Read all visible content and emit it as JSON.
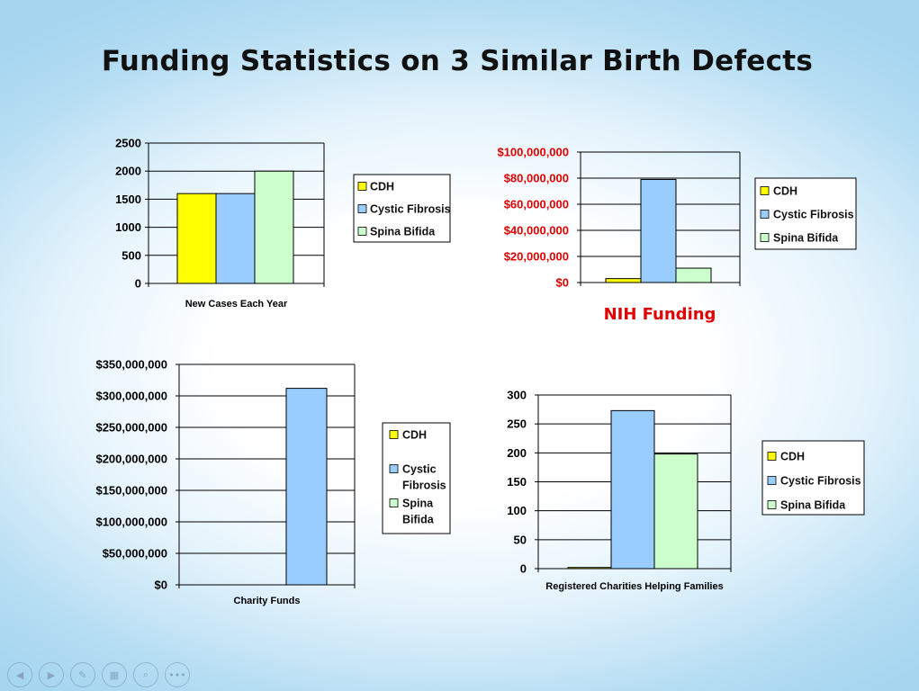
{
  "slide": {
    "title": "Funding Statistics on 3 Similar Birth Defects"
  },
  "colors": {
    "CDH": "#ffff00",
    "Cystic Fibrosis": "#99ccff",
    "Spina Bifida": "#ccffcc",
    "red_text": "#e00000"
  },
  "chart_data": [
    {
      "id": "new-cases",
      "type": "bar",
      "title": "",
      "categories": [
        "New Cases Each Year"
      ],
      "series": [
        {
          "name": "CDH",
          "values": [
            1600
          ]
        },
        {
          "name": "Cystic Fibrosis",
          "values": [
            1600
          ]
        },
        {
          "name": "Spina Bifida",
          "values": [
            2000
          ]
        }
      ],
      "yticks": [
        "0",
        "500",
        "1000",
        "1500",
        "2000",
        "2500"
      ],
      "ylim": [
        0,
        2500
      ],
      "legend": [
        "CDH",
        "Cystic Fibrosis",
        "Spina Bifida"
      ],
      "grid": true
    },
    {
      "id": "nih-funding",
      "type": "bar",
      "title": "NIH Funding",
      "categories": [
        ""
      ],
      "series": [
        {
          "name": "CDH",
          "values": [
            3000000
          ]
        },
        {
          "name": "Cystic Fibrosis",
          "values": [
            79000000
          ]
        },
        {
          "name": "Spina Bifida",
          "values": [
            11000000
          ]
        }
      ],
      "yticks": [
        "$0",
        "$20,000,000",
        "$40,000,000",
        "$60,000,000",
        "$80,000,000",
        "$100,000,000"
      ],
      "ylim": [
        0,
        100000000
      ],
      "legend": [
        "CDH",
        "Cystic Fibrosis",
        "Spina Bifida"
      ],
      "grid": true
    },
    {
      "id": "charity-funds",
      "type": "bar",
      "title": "",
      "categories": [
        "Charity Funds"
      ],
      "series": [
        {
          "name": "CDH",
          "values": [
            0
          ]
        },
        {
          "name": "Cystic Fibrosis",
          "values": [
            312000000
          ]
        },
        {
          "name": "Spina Bifida",
          "values": [
            0
          ]
        }
      ],
      "yticks": [
        "$0",
        "$50,000,000",
        "$100,000,000",
        "$150,000,000",
        "$200,000,000",
        "$250,000,000",
        "$300,000,000",
        "$350,000,000"
      ],
      "ylim": [
        0,
        350000000
      ],
      "legend": [
        "CDH",
        "Cystic Fibrosis",
        "Spina Bifida"
      ],
      "grid": true
    },
    {
      "id": "registered-charities",
      "type": "bar",
      "title": "",
      "categories": [
        "Registered Charities Helping Families"
      ],
      "series": [
        {
          "name": "CDH",
          "values": [
            2
          ]
        },
        {
          "name": "Cystic Fibrosis",
          "values": [
            273
          ]
        },
        {
          "name": "Spina Bifida",
          "values": [
            198
          ]
        }
      ],
      "yticks": [
        "0",
        "50",
        "100",
        "150",
        "200",
        "250",
        "300"
      ],
      "ylim": [
        0,
        300
      ],
      "legend": [
        "CDH",
        "Cystic Fibrosis",
        "Spina Bifida"
      ],
      "grid": true
    }
  ],
  "nav": {
    "prev": "◀",
    "next": "▶",
    "pen": "✎",
    "slides": "▦",
    "zoom": "⌕",
    "more": "•••"
  }
}
